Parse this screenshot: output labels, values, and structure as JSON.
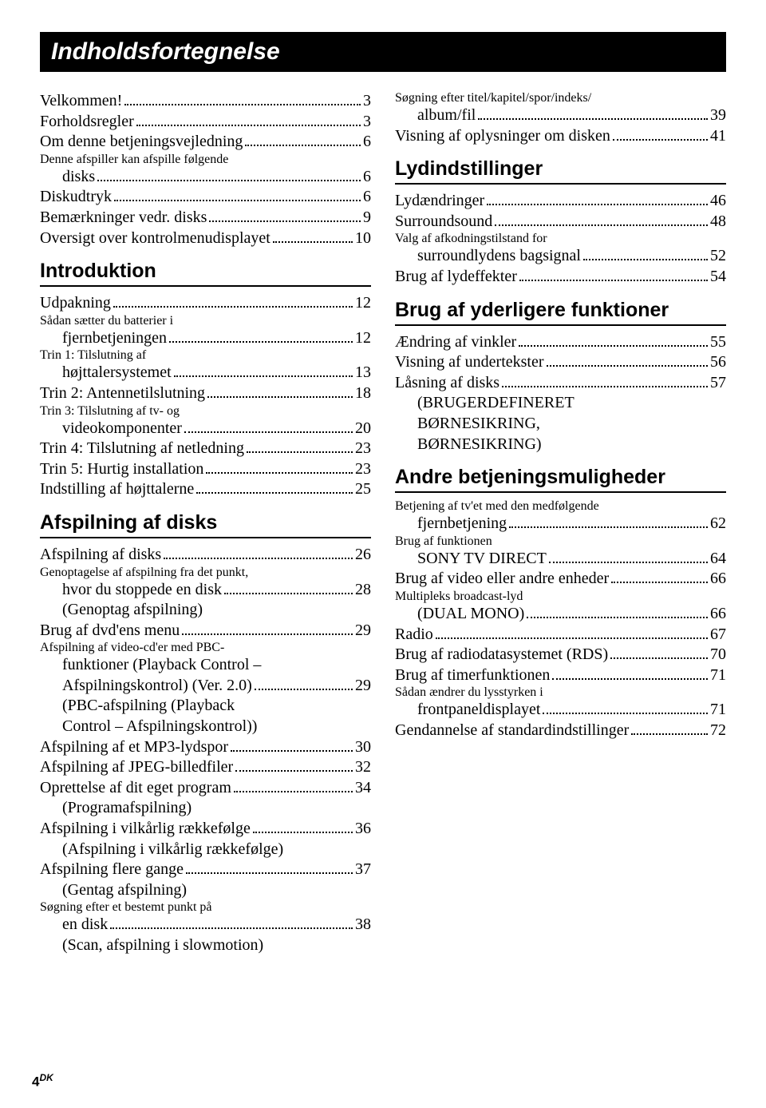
{
  "title": "Indholdsfortegnelse",
  "footer": "4",
  "footer_suffix": "DK",
  "left": {
    "group1": {
      "e1_label": "Velkommen!",
      "e1_page": "3",
      "e2_label": "Forholdsregler",
      "e2_page": "3",
      "e3_label": "Om denne betjeningsvejledning",
      "e3_page": "6",
      "e4a": "Denne afspiller kan afspille følgende",
      "e4b": "disks",
      "e4_page": "6",
      "e5_label": "Diskudtryk",
      "e5_page": "6",
      "e6_label": "Bemærkninger vedr. disks",
      "e6_page": "9",
      "e7_label": "Oversigt over kontrolmenudisplayet",
      "e7_page": "10"
    },
    "s1": {
      "heading": "Introduktion",
      "e1_label": "Udpakning",
      "e1_page": "12",
      "e2a": "Sådan sætter du batterier i",
      "e2b": "fjernbetjeningen",
      "e2_page": "12",
      "e3a": "Trin 1: Tilslutning af",
      "e3b": "højttalersystemet",
      "e3_page": "13",
      "e4_label": "Trin 2: Antennetilslutning",
      "e4_page": "18",
      "e5a": "Trin 3: Tilslutning af tv- og",
      "e5b": "videokomponenter",
      "e5_page": "20",
      "e6_label": "Trin 4: Tilslutning af netledning",
      "e6_page": "23",
      "e7_label": "Trin 5: Hurtig installation",
      "e7_page": "23",
      "e8_label": "Indstilling af højttalerne",
      "e8_page": "25"
    },
    "s2": {
      "heading": "Afspilning af disks",
      "e1_label": "Afspilning af disks",
      "e1_page": "26",
      "e2a": "Genoptagelse af afspilning fra det punkt,",
      "e2b": "hvor du stoppede en disk",
      "e2_page": "28",
      "e2_note": "(Genoptag afspilning)",
      "e3_label": "Brug af dvd'ens menu",
      "e3_page": "29",
      "e4a": "Afspilning af video-cd'er med PBC-",
      "e4b": "funktioner (Playback Control –",
      "e4c": "Afspilningskontrol) (Ver. 2.0)",
      "e4_page": "29",
      "e4_note1": "(PBC-afspilning (Playback",
      "e4_note2": "Control – Afspilningskontrol))",
      "e5_label": "Afspilning af et MP3-lydspor",
      "e5_page": "30",
      "e6_label": "Afspilning af JPEG-billedfiler",
      "e6_page": "32",
      "e7_label": "Oprettelse af dit eget program",
      "e7_page": "34",
      "e7_note": "(Programafspilning)",
      "e8_label": "Afspilning i vilkårlig rækkefølge",
      "e8_page": "36",
      "e8_note": "(Afspilning i vilkårlig rækkefølge)",
      "e9_label": "Afspilning flere gange",
      "e9_page": "37",
      "e9_note": "(Gentag afspilning)",
      "e10a": "Søgning efter et bestemt punkt på",
      "e10b": "en disk",
      "e10_page": "38",
      "e10_note": "(Scan, afspilning i slowmotion)"
    }
  },
  "right": {
    "group1": {
      "e1a": "Søgning efter titel/kapitel/spor/indeks/",
      "e1b": "album/fil",
      "e1_page": "39",
      "e2_label": "Visning af oplysninger om disken",
      "e2_page": "41"
    },
    "s1": {
      "heading": "Lydindstillinger",
      "e1_label": "Lydændringer",
      "e1_page": "46",
      "e2_label": "Surroundsound",
      "e2_page": "48",
      "e3a": "Valg af afkodningstilstand for",
      "e3b": "surroundlydens bagsignal",
      "e3_page": "52",
      "e4_label": "Brug af lydeffekter",
      "e4_page": "54"
    },
    "s2": {
      "heading": "Brug af yderligere funktioner",
      "e1_label": "Ændring af vinkler",
      "e1_page": "55",
      "e2_label": "Visning af undertekster",
      "e2_page": "56",
      "e3_label": "Låsning af disks",
      "e3_page": "57",
      "e3_note1": "(BRUGERDEFINERET",
      "e3_note2": "BØRNESIKRING,",
      "e3_note3": "BØRNESIKRING)"
    },
    "s3": {
      "heading": "Andre betjeningsmuligheder",
      "e1a": "Betjening af tv'et med den medfølgende",
      "e1b": "fjernbetjening",
      "e1_page": "62",
      "e2a": "Brug af funktionen",
      "e2b": "SONY TV DIRECT",
      "e2_page": "64",
      "e3_label": "Brug af video eller andre enheder",
      "e3_page": "66",
      "e4a": "Multipleks broadcast-lyd",
      "e4b": "(DUAL MONO)",
      "e4_page": "66",
      "e5_label": "Radio",
      "e5_page": "67",
      "e6_label": "Brug af radiodatasystemet (RDS)",
      "e6_page": "70",
      "e7_label": "Brug af timerfunktionen",
      "e7_page": "71",
      "e8a": "Sådan ændrer du lysstyrken i",
      "e8b": "frontpaneldisplayet",
      "e8_page": "71",
      "e9_label": "Gendannelse af standardindstillinger",
      "e9_page": "72"
    }
  }
}
